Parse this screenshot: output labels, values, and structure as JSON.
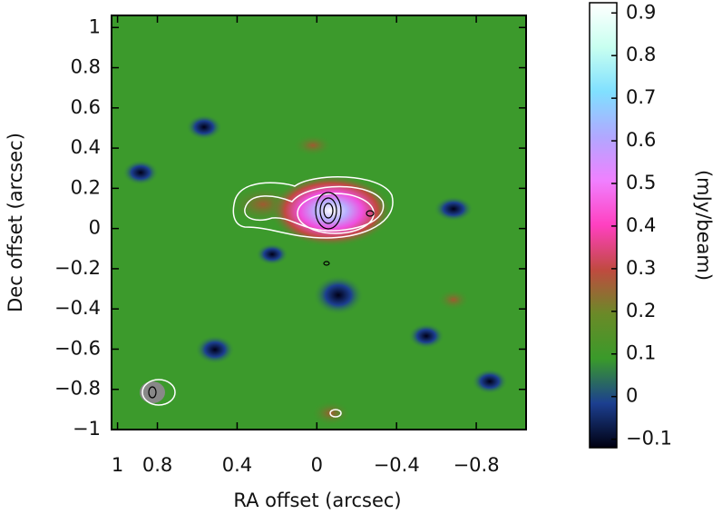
{
  "chart_data": {
    "type": "image",
    "xlabel": "RA offset (arcsec)",
    "ylabel": "Dec offset (arcsec)",
    "xlim": [
      1.03,
      -1.05
    ],
    "xticks": [
      1,
      0.8,
      0.4,
      0,
      {
        "value": -0.4,
        "label": "−0.4"
      },
      {
        "value": -0.8,
        "label": "−0.8"
      }
    ],
    "ylim": [
      -1.0,
      1.06
    ],
    "yticks": [
      1,
      0.8,
      0.6,
      0.4,
      0.2,
      0,
      {
        "value": -0.2,
        "label": "−0.2"
      },
      {
        "value": -0.4,
        "label": "−0.4"
      },
      {
        "value": -0.6,
        "label": "−0.6"
      },
      {
        "value": -0.8,
        "label": "−0.8"
      },
      {
        "value": -1,
        "label": "−1"
      }
    ],
    "colorbar": {
      "label": "(mJy/beam)",
      "lim": [
        -0.12,
        0.924
      ],
      "ticks": [
        0.9,
        0.8,
        0.7,
        0.6,
        0.5,
        0.4,
        0.3,
        0.2,
        0.1,
        0,
        {
          "value": -0.1,
          "label": "−0.1"
        }
      ],
      "colormap": [
        "#000010",
        "#1c3f90",
        "#3a9a2a",
        "#6a8a28",
        "#c04a40",
        "#ff40c0",
        "#f080ff",
        "#b0a8ff",
        "#80e0ff",
        "#c8fff0",
        "#ffffff"
      ]
    }
  }
}
